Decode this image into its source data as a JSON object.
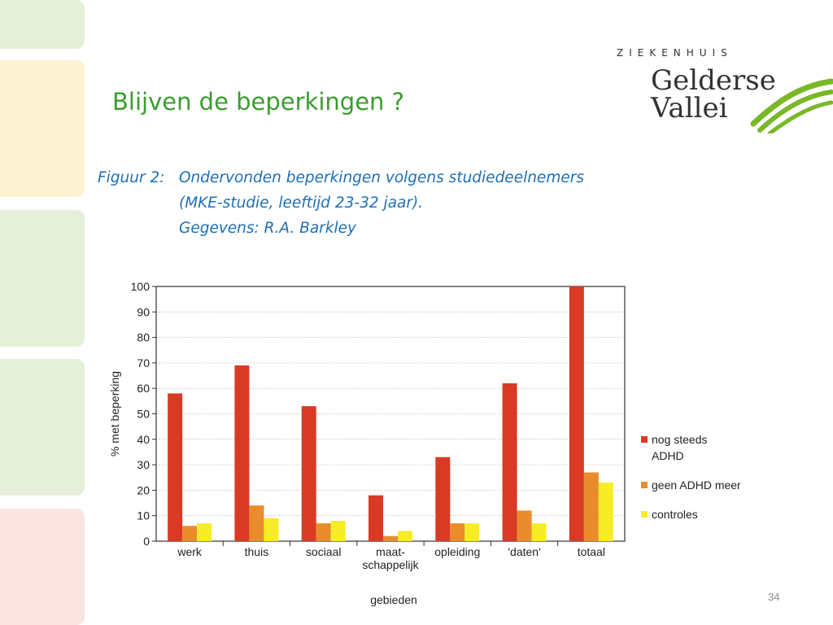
{
  "slide": {
    "title": "Blijven de beperkingen ?",
    "page_number": "34",
    "side_tab_colors": [
      "#e5efd9",
      "#fdf3d2",
      "#e5efd9",
      "#e5efd9",
      "#fae3e1"
    ]
  },
  "logo": {
    "top_text": "ZIEKENHUIS",
    "line1": "Gelderse",
    "line2": "Vallei",
    "wave_color": "#7ab828"
  },
  "figure_caption": {
    "label": "Figuur 2:",
    "line1": "Ondervonden beperkingen volgens studiedeelnemers",
    "line2": "(MKE-studie, leeftijd 23-32 jaar).",
    "line3": "Gegevens: R.A. Barkley",
    "color": "#1f6fb5"
  },
  "chart_data": {
    "type": "bar",
    "categories": [
      "werk",
      "thuis",
      "sociaal",
      "maat-\nschappelijk",
      "opleiding",
      "'daten'",
      "totaal"
    ],
    "series": [
      {
        "name": "nog steeds ADHD",
        "color": "#d93a24",
        "values": [
          58,
          69,
          53,
          18,
          33,
          62,
          100
        ]
      },
      {
        "name": "geen ADHD meer",
        "color": "#e98c2b",
        "values": [
          6,
          14,
          7,
          2,
          7,
          12,
          27
        ]
      },
      {
        "name": "controles",
        "color": "#f7ec28",
        "values": [
          7,
          9,
          8,
          4,
          7,
          7,
          23
        ]
      }
    ],
    "xlabel": "gebieden",
    "ylabel": "% met beperking",
    "ylim": [
      0,
      100
    ],
    "yticks": [
      0,
      10,
      20,
      30,
      40,
      50,
      60,
      70,
      80,
      90,
      100
    ],
    "grid": true,
    "legend_position": "right"
  }
}
